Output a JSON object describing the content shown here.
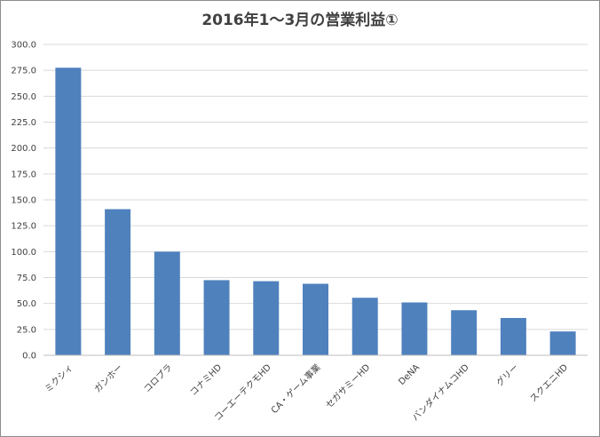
{
  "chart_data": {
    "type": "bar",
    "title": "2016年1〜3月の営業利益①",
    "xlabel": "",
    "ylabel": "",
    "ylim": [
      0,
      300
    ],
    "yticks": [
      "0.0",
      "25.0",
      "50.0",
      "75.0",
      "100.0",
      "125.0",
      "150.0",
      "175.0",
      "200.0",
      "225.0",
      "250.0",
      "275.0",
      "300.0"
    ],
    "categories": [
      "ミクシィ",
      "ガンホー",
      "コロプラ",
      "コナミHD",
      "コーエーテクモHD",
      "CA・ゲーム事業",
      "セガサミーHD",
      "DeNA",
      "バンダイナムコHD",
      "グリー",
      "スクエニHD"
    ],
    "values": [
      277.5,
      141,
      100,
      72.5,
      71.5,
      69,
      55.5,
      51,
      43.5,
      36,
      23
    ],
    "bar_color": "#4f81bd",
    "grid": true,
    "legend": "none"
  }
}
